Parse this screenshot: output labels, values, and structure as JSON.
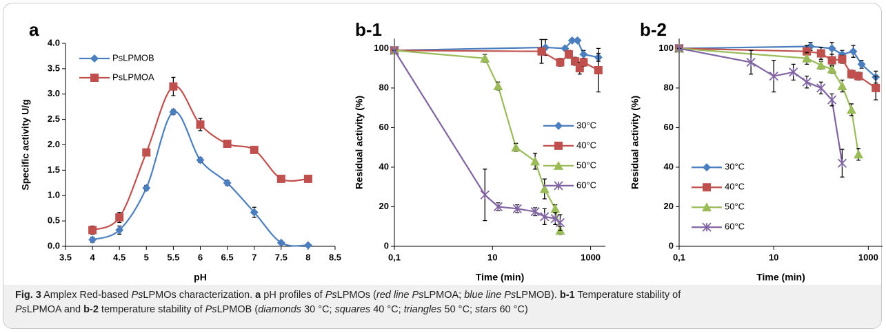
{
  "chart_data": [
    {
      "type": "line",
      "panel": "a",
      "smooth": true,
      "xscale": "linear",
      "legend": "upper left",
      "xlabel": "pH",
      "ylabel": "Specific activity U/g",
      "xlim": [
        3.5,
        8.5
      ],
      "xticks": [
        3.5,
        4,
        4.5,
        5,
        5.5,
        6,
        6.5,
        7,
        7.5,
        8,
        8.5
      ],
      "ylim": [
        0,
        4
      ],
      "yticks": [
        {
          "value": 0,
          "label": "0.0"
        },
        {
          "value": 0.5,
          "label": "0.5"
        },
        {
          "value": 1,
          "label": "1.0"
        },
        {
          "value": 1.5,
          "label": "1.5"
        },
        {
          "value": 2,
          "label": "2.0"
        },
        {
          "value": 2.5,
          "label": "2.5"
        },
        {
          "value": 3,
          "label": "3.0"
        },
        {
          "value": 3.5,
          "label": "3.5"
        },
        {
          "value": 4,
          "label": "4.0"
        }
      ],
      "series": [
        {
          "name": "PsLPMOB",
          "color": "#4a7ebf",
          "marker": "diamond",
          "x": [
            4,
            4.5,
            5,
            5.5,
            6,
            6.5,
            7,
            7.5,
            8
          ],
          "values": [
            0.13,
            0.32,
            1.15,
            2.65,
            1.7,
            1.25,
            0.67,
            0.07,
            0.02
          ],
          "errors": [
            0.05,
            0.08,
            0.05,
            0.05,
            0.05,
            0.05,
            0.1,
            0.02,
            0.02
          ]
        },
        {
          "name": "PsLPMOA",
          "color": "#c0504d",
          "marker": "square",
          "x": [
            4,
            4.5,
            5,
            5.5,
            6,
            6.5,
            7,
            7.5,
            8
          ],
          "values": [
            0.32,
            0.57,
            1.85,
            3.15,
            2.4,
            2.02,
            1.9,
            1.33,
            1.33
          ],
          "errors": [
            0.08,
            0.1,
            0.05,
            0.18,
            0.12,
            0.05,
            0.05,
            0.05,
            0.05
          ]
        }
      ]
    },
    {
      "type": "line",
      "panel": "b-1",
      "smooth": false,
      "xscale": "log",
      "legend": "center right",
      "xlabel": "Time (min)",
      "ylabel": "Residual activity (%)",
      "xlim": [
        0.1,
        2000
      ],
      "xticks": [
        {
          "value": 0.1,
          "label": "0,1"
        },
        10,
        1000
      ],
      "ylim": [
        0,
        105
      ],
      "yticks": [
        0,
        20,
        40,
        60,
        80,
        100
      ],
      "series": [
        {
          "name": "30°C",
          "color": "#4a7ebf",
          "marker": "diamond",
          "x": [
            0.1,
            120,
            300,
            420,
            540,
            720,
            1440
          ],
          "values": [
            99,
            100.5,
            100,
            104,
            104,
            97,
            95.5
          ],
          "errors": [
            0,
            4,
            1,
            1,
            1,
            2,
            2
          ]
        },
        {
          "name": "40°C",
          "color": "#c0504d",
          "marker": "square",
          "x": [
            0.1,
            100,
            240,
            360,
            480,
            600,
            720,
            1440
          ],
          "values": [
            99,
            98.5,
            93,
            97,
            93.5,
            90,
            93,
            89
          ],
          "errors": [
            0,
            6,
            2,
            2,
            2,
            3,
            2,
            11
          ]
        },
        {
          "name": "50°C",
          "color": "#9bbb59",
          "marker": "triangle",
          "x": [
            0.1,
            7,
            13,
            30,
            74,
            115,
            190,
            240
          ],
          "values": [
            99,
            95,
            81,
            50,
            43,
            29,
            19,
            8
          ],
          "errors": [
            0,
            2,
            2,
            2,
            4,
            5,
            2,
            2
          ]
        },
        {
          "name": "60°C",
          "color": "#8064a2",
          "marker": "star",
          "x": [
            0.1,
            7,
            13,
            32,
            74,
            115,
            190,
            240
          ],
          "values": [
            99,
            26,
            20,
            19,
            17.5,
            15,
            14,
            12
          ],
          "errors": [
            0,
            13,
            2,
            2,
            2,
            4,
            3,
            4
          ]
        }
      ]
    },
    {
      "type": "line",
      "panel": "b-2",
      "smooth": false,
      "xscale": "log",
      "legend": "lower left",
      "xlabel": "Time (min)",
      "ylabel": "Residual activity (%)",
      "xlim": [
        0.1,
        2000
      ],
      "xticks": [
        {
          "value": 0.1,
          "label": "0,1"
        },
        10,
        1000
      ],
      "ylim": [
        0,
        105
      ],
      "yticks": [
        0,
        20,
        40,
        60,
        80,
        100
      ],
      "series": [
        {
          "name": "30°C",
          "color": "#4a7ebf",
          "marker": "diamond",
          "x": [
            0.1,
            60,
            170,
            280,
            480,
            720,
            1440
          ],
          "values": [
            100,
            101,
            100,
            97,
            98.5,
            92,
            85.5
          ],
          "errors": [
            0,
            2,
            3,
            2,
            3,
            2,
            3
          ]
        },
        {
          "name": "40°C",
          "color": "#c0504d",
          "marker": "square",
          "x": [
            0.1,
            50,
            100,
            170,
            280,
            440,
            620,
            1440
          ],
          "values": [
            100,
            98.5,
            97.5,
            94,
            94.5,
            87,
            86,
            80
          ],
          "errors": [
            0,
            3,
            3,
            3,
            2,
            2,
            2,
            6
          ]
        },
        {
          "name": "50°C",
          "color": "#9bbb59",
          "marker": "triangle",
          "x": [
            0.1,
            50,
            100,
            170,
            280,
            440,
            620
          ],
          "values": [
            100,
            95,
            91.5,
            89.5,
            81,
            69,
            46.5
          ],
          "errors": [
            0,
            3,
            2,
            2,
            3,
            3,
            3
          ]
        },
        {
          "name": "60°C",
          "color": "#8064a2",
          "marker": "star",
          "x": [
            0.1,
            3.3,
            10,
            26,
            50,
            100,
            170,
            280
          ],
          "values": [
            100,
            93,
            86,
            88,
            83,
            80,
            74,
            42
          ],
          "errors": [
            0,
            6,
            8,
            4,
            3,
            3,
            3,
            7
          ]
        }
      ]
    }
  ],
  "caption": [
    "Fig. 3",
    "  Amplex Red-based ",
    "Ps",
    "LPMOs characterization. ",
    "a",
    " pH profiles of ",
    "Ps",
    "LPMOs (",
    "red line Ps",
    "LPMOA; ",
    "blue line Ps",
    "LPMOB). ",
    "b-1",
    " Temperature stability of ",
    "Ps",
    "LPMOA and ",
    "b-2",
    " temperature stability of ",
    "Ps",
    "LPMOB (",
    "diamonds",
    " 30 °C; ",
    "squares",
    " 40 °C; ",
    "triangles",
    " 50 °C; ",
    "stars",
    " 60 °C)"
  ]
}
